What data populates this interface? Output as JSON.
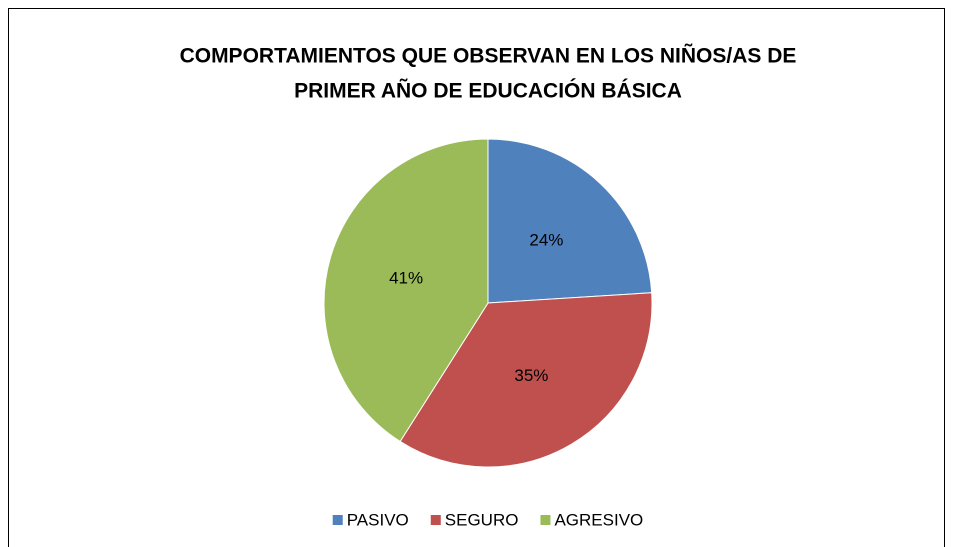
{
  "chart_data": {
    "type": "pie",
    "title": [
      "COMPORTAMIENTOS QUE OBSERVAN EN LOS NIÑOS/AS DE",
      "PRIMER AÑO DE EDUCACIÓN BÁSICA"
    ],
    "categories": [
      "PASIVO",
      "SEGURO",
      "AGRESIVO"
    ],
    "values": [
      24,
      35,
      41
    ],
    "value_labels": [
      "24%",
      "35%",
      "41%"
    ],
    "colors": [
      "#4f81bd",
      "#c0504d",
      "#9bbb59"
    ],
    "legend": "bottom"
  }
}
